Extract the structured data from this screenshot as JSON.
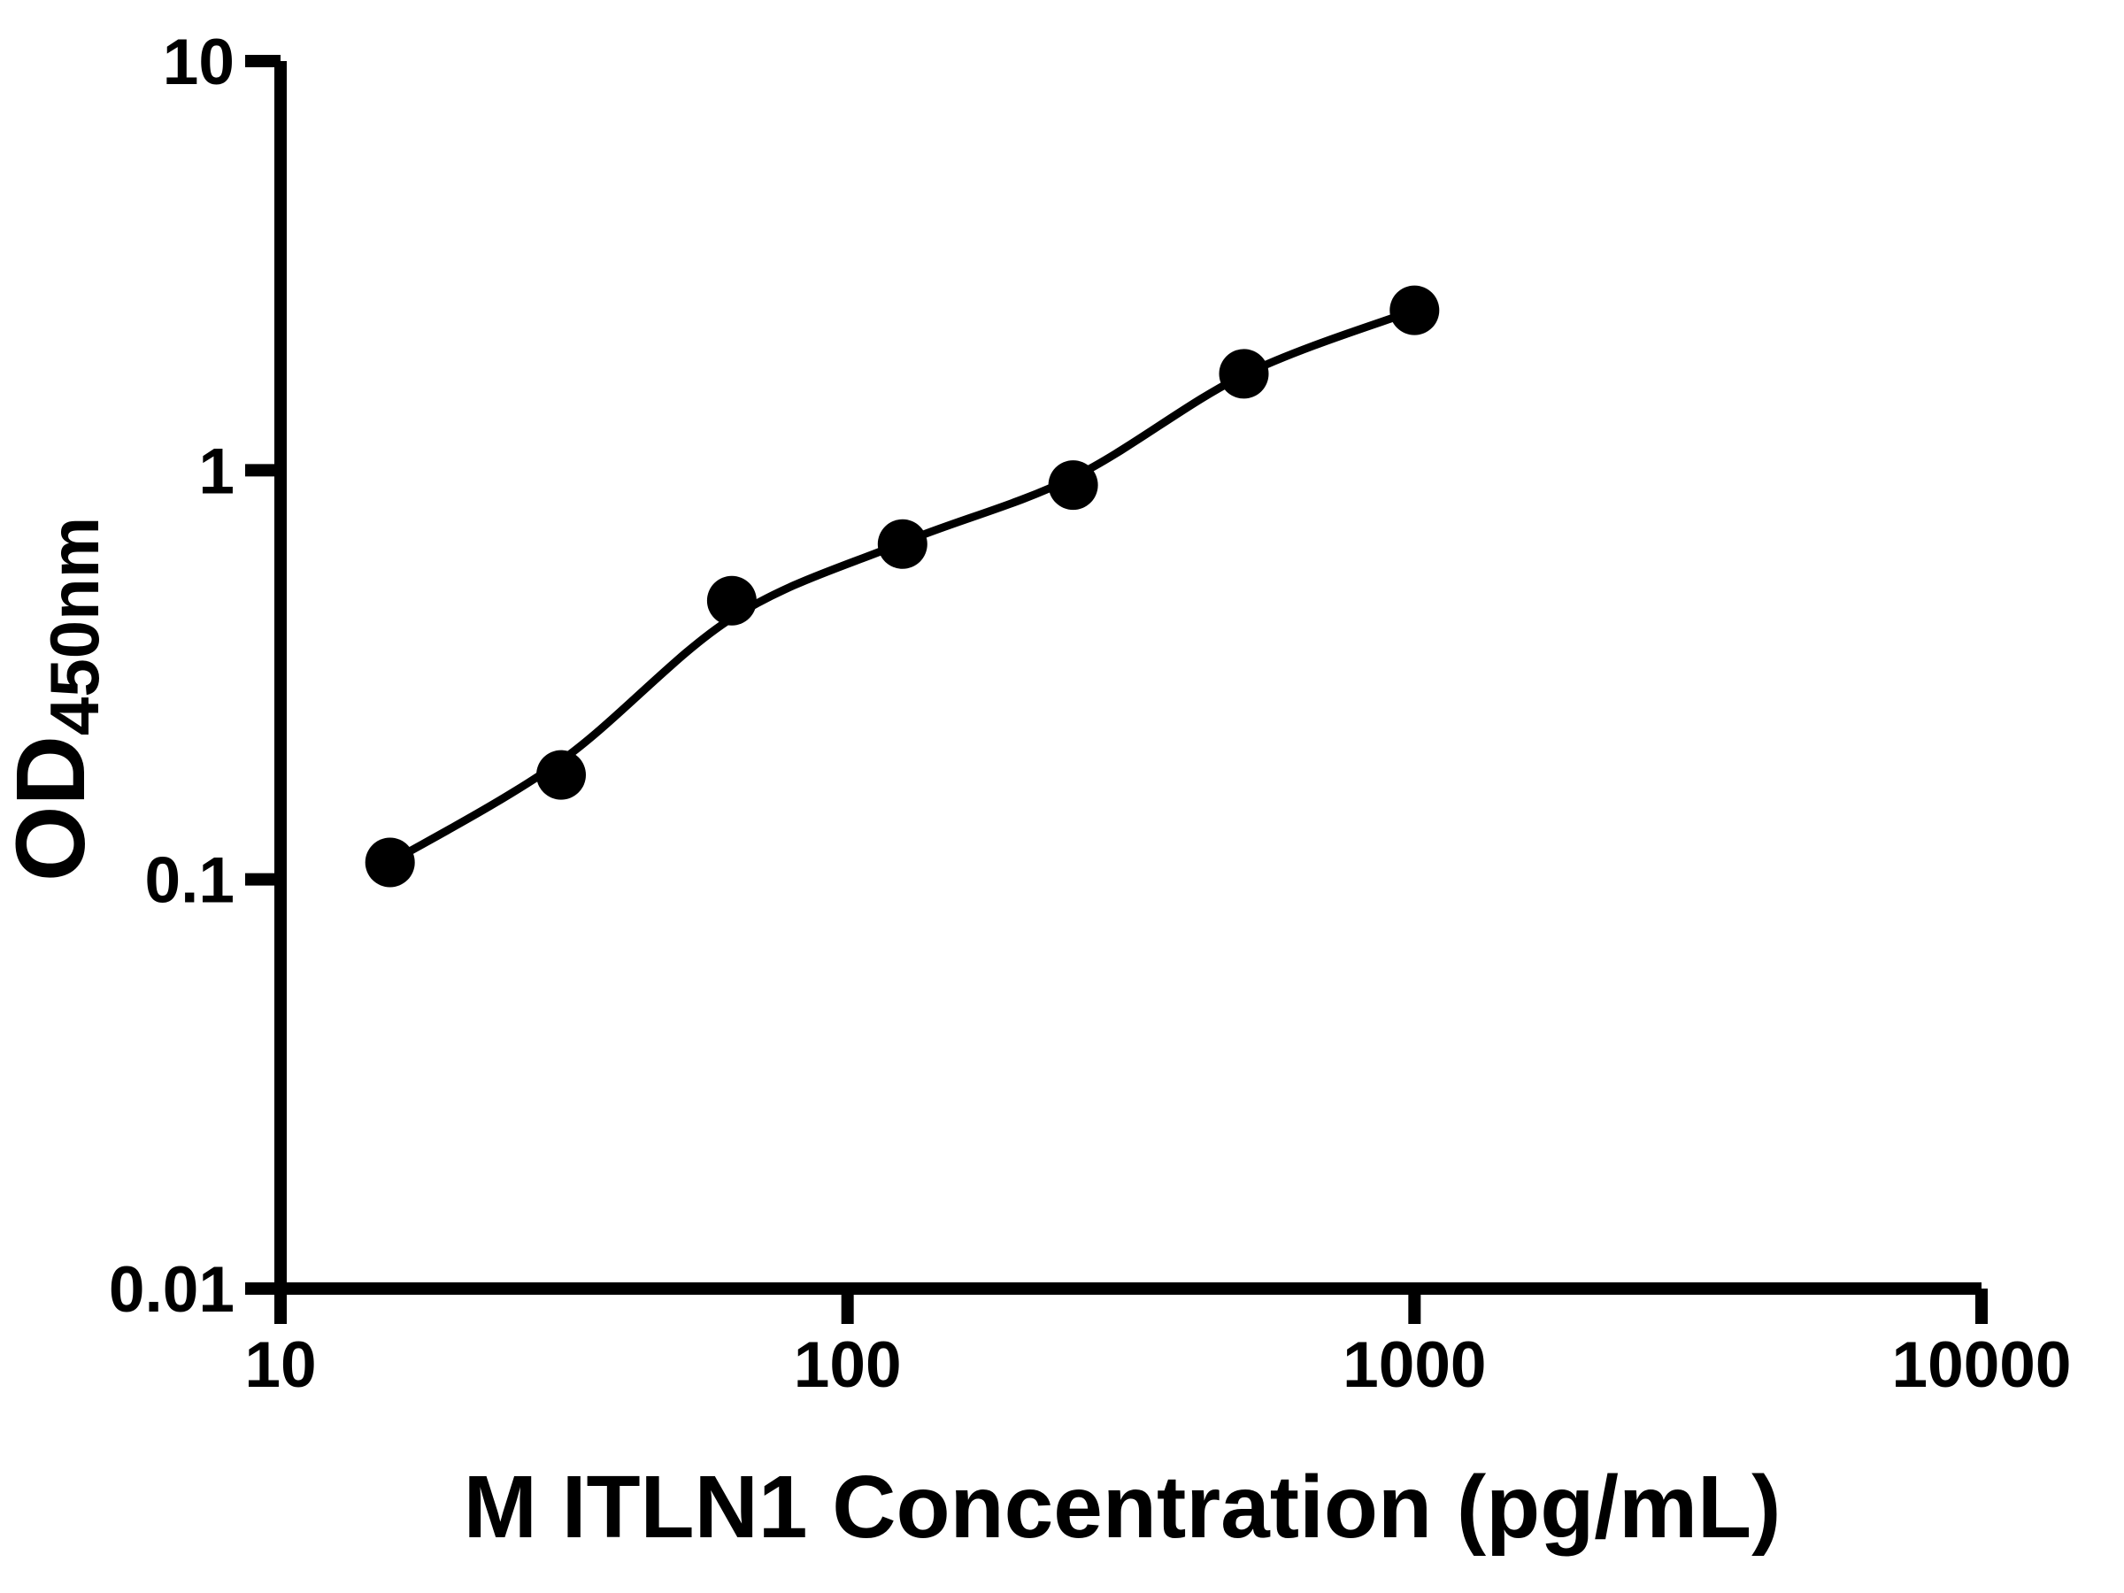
{
  "figure": {
    "background_color": "#ffffff",
    "ink_color": "#000000"
  },
  "chart_data": {
    "type": "scatter",
    "title": "",
    "xlabel": "M ITLN1 Concentration (pg/mL)",
    "ylabel_main": "OD",
    "ylabel_sub": "450nm",
    "x_scale": "log",
    "y_scale": "log",
    "xlim": [
      10,
      10000
    ],
    "ylim": [
      0.01,
      10
    ],
    "grid": false,
    "legend_position": "none",
    "x_ticks": [
      {
        "value": 10,
        "label": "10"
      },
      {
        "value": 100,
        "label": "100"
      },
      {
        "value": 1000,
        "label": "1000"
      },
      {
        "value": 10000,
        "label": "10000"
      }
    ],
    "y_ticks": [
      {
        "value": 10,
        "label": "10"
      },
      {
        "value": 1,
        "label": "1"
      },
      {
        "value": 0.1,
        "label": "0.1"
      },
      {
        "value": 0.01,
        "label": "0.01"
      }
    ],
    "series": [
      {
        "name": "standard-points",
        "render": "scatter",
        "marker": "circle",
        "color": "#000000",
        "points": [
          {
            "x": 15.6,
            "y": 0.11
          },
          {
            "x": 31.25,
            "y": 0.18
          },
          {
            "x": 62.5,
            "y": 0.48
          },
          {
            "x": 125,
            "y": 0.66
          },
          {
            "x": 250,
            "y": 0.92
          },
          {
            "x": 500,
            "y": 1.72
          },
          {
            "x": 1000,
            "y": 2.46
          }
        ]
      },
      {
        "name": "fitted-curve",
        "render": "line",
        "color": "#000000",
        "points": [
          {
            "x": 15.6,
            "y": 0.11
          },
          {
            "x": 31.25,
            "y": 0.195
          },
          {
            "x": 62.5,
            "y": 0.435
          },
          {
            "x": 125,
            "y": 0.665
          },
          {
            "x": 250,
            "y": 0.96
          },
          {
            "x": 500,
            "y": 1.71
          },
          {
            "x": 1000,
            "y": 2.46
          }
        ]
      }
    ]
  }
}
